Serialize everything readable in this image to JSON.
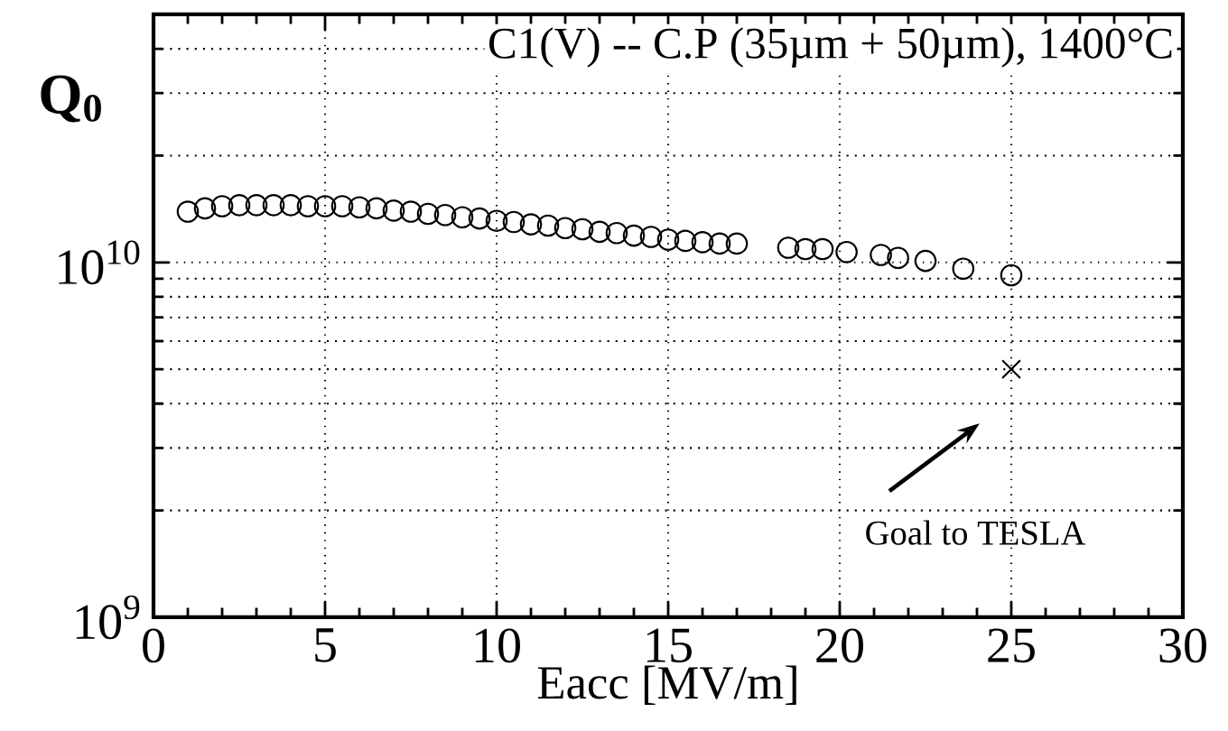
{
  "chart_data": {
    "type": "scatter",
    "title": "C1(V) -- C.P (35µm + 50µm), 1400°C",
    "xlabel": "Eacc  [MV/m]",
    "ylabel": "Q$_{0}$",
    "log": "y",
    "grid": true,
    "xlim": [
      0,
      30
    ],
    "ylim": [
      1000000000,
      50000000000
    ],
    "xticks": [
      0,
      5,
      10,
      15,
      20,
      25,
      30
    ],
    "yticks": [
      {
        "value": 1000000000,
        "label": "10$^{9}$"
      },
      {
        "value": 10000000000,
        "label": "10$^{10}$"
      }
    ],
    "series": [
      {
        "color": "#000000",
        "marker": "circle",
        "x": [
          1,
          1.5,
          2,
          2.5,
          3,
          3.5,
          4,
          4.5,
          5,
          5.5,
          6,
          6.5,
          7,
          7.5,
          8,
          8.5,
          9,
          9.5,
          10,
          10.5,
          11,
          11.5,
          12,
          12.5,
          13,
          13.5,
          14,
          14.5,
          15,
          15.5,
          16,
          16.5,
          17,
          18.5,
          19,
          19.5,
          20.2,
          21.2,
          21.7,
          22.5,
          23.6,
          25
        ],
        "values": [
          13900000000.0,
          14200000000.0,
          14400000000.0,
          14500000000.0,
          14500000000.0,
          14500000000.0,
          14500000000.0,
          14400000000.0,
          14400000000.0,
          14400000000.0,
          14300000000.0,
          14200000000.0,
          14000000000.0,
          13900000000.0,
          13700000000.0,
          13600000000.0,
          13400000000.0,
          13300000000.0,
          13100000000.0,
          13000000000.0,
          12800000000.0,
          12700000000.0,
          12500000000.0,
          12400000000.0,
          12200000000.0,
          12100000000.0,
          11900000000.0,
          11800000000.0,
          11600000000.0,
          11500000000.0,
          11400000000.0,
          11300000000.0,
          11300000000.0,
          11000000000.0,
          10900000000.0,
          10900000000.0,
          10700000000.0,
          10500000000.0,
          10300000000.0,
          10100000000.0,
          9600000000.0,
          9200000000.0
        ]
      },
      {
        "color": "#000000",
        "marker": "cross",
        "x": [
          25
        ],
        "values": [
          5000000000.0
        ]
      }
    ],
    "annotations": [
      "Goal to TESLA"
    ]
  }
}
